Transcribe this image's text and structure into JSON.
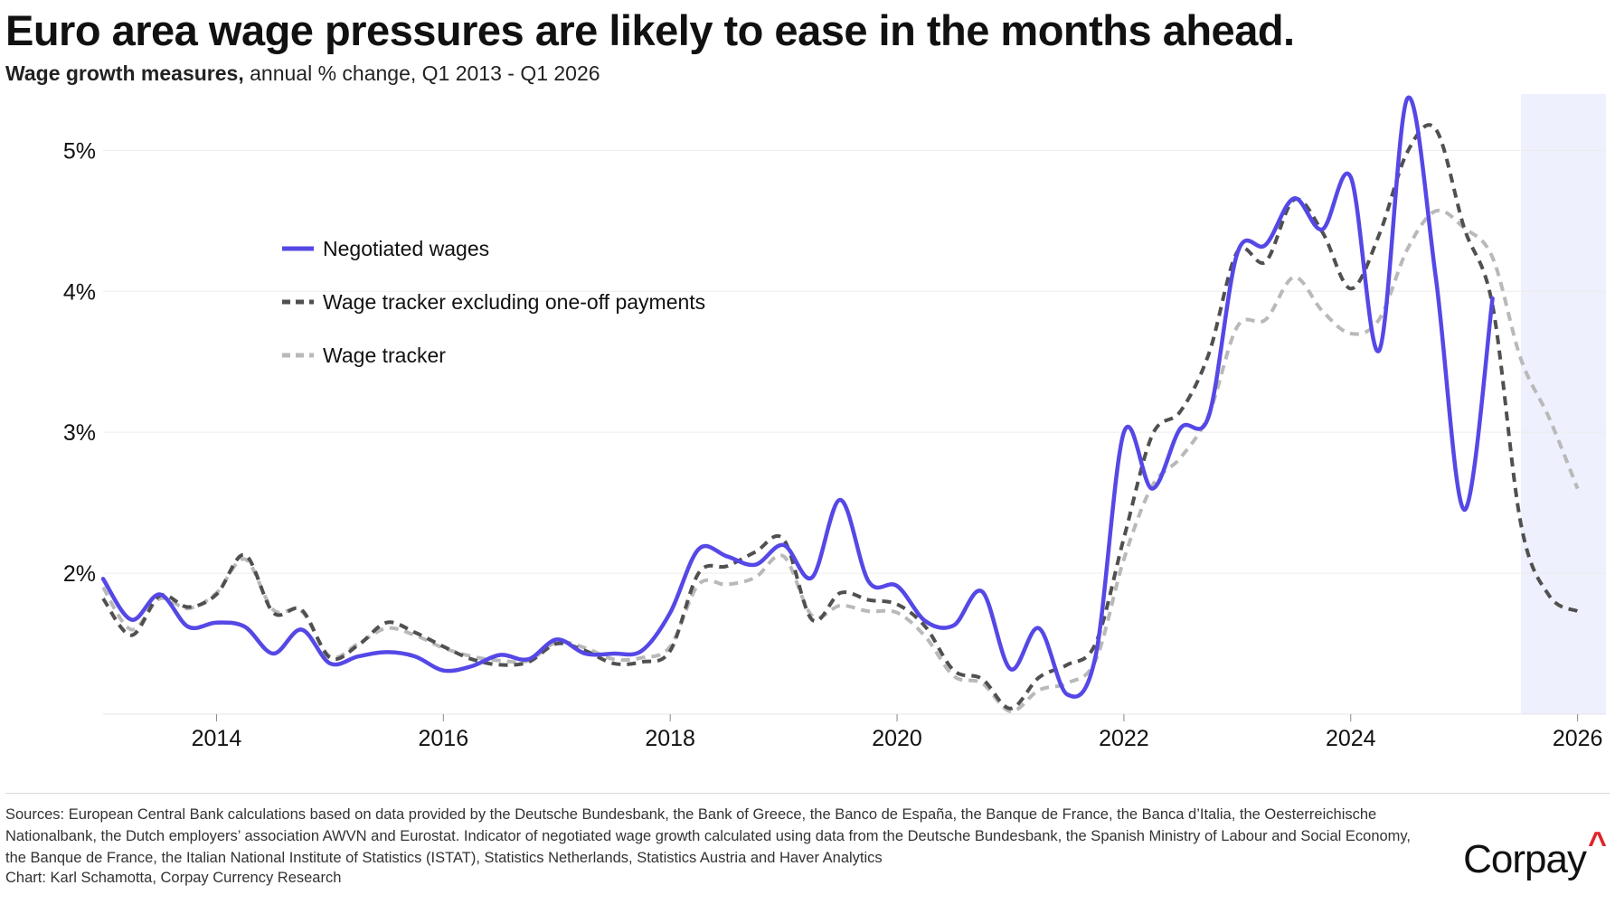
{
  "title": "Euro area wage pressures are likely to ease in the months ahead.",
  "subtitle_bold": "Wage growth measures,",
  "subtitle_rest": " annual % change, Q1 2013 - Q1 2026",
  "footer": {
    "sources": "Sources: European Central Bank calculations based on data provided by the Deutsche Bundesbank, the Bank of Greece, the Banco de España, the Banque de France, the Banca d’Italia, the Oesterreichische Nationalbank, the Dutch employers’ association AWVN and Eurostat. Indicator of negotiated wage growth calculated using data from the Deutsche Bundesbank, the Spanish Ministry of Labour and Social Economy, the Banque de France, the Italian National Institute of Statistics (ISTAT), Statistics Netherlands, Statistics Austria and Haver Analytics",
    "credit": "Chart: Karl Schamotta, Corpay Currency Research",
    "logo_text": "Corpay",
    "logo_mark": "^"
  },
  "colors": {
    "negotiated": "#5548e6",
    "tracker_excl": "#505050",
    "tracker": "#b9b9b9",
    "forecast_band": "#eef0fd",
    "grid": "#ececec",
    "logo_accent": "#e0242a"
  },
  "chart_data": {
    "type": "line",
    "x_unit": "year",
    "xlim": [
      2013.0,
      2026.25
    ],
    "ylim": [
      1.0,
      5.4
    ],
    "x_ticks": [
      2014,
      2016,
      2018,
      2020,
      2022,
      2024,
      2026
    ],
    "x_tick_labels": [
      "2014",
      "2016",
      "2018",
      "2020",
      "2022",
      "2024",
      "2026"
    ],
    "y_ticks": [
      2,
      3,
      4,
      5
    ],
    "y_tick_labels": [
      "2%",
      "3%",
      "4%",
      "5%"
    ],
    "grid": "horizontal",
    "legend_position": "middle-left",
    "shaded_region": [
      2025.5,
      2026.25
    ],
    "series": [
      {
        "name": "Negotiated wages",
        "style": "solid",
        "points": [
          [
            2013.0,
            1.96
          ],
          [
            2013.25,
            1.67
          ],
          [
            2013.5,
            1.85
          ],
          [
            2013.75,
            1.62
          ],
          [
            2014.0,
            1.65
          ],
          [
            2014.25,
            1.62
          ],
          [
            2014.5,
            1.43
          ],
          [
            2014.75,
            1.6
          ],
          [
            2015.0,
            1.36
          ],
          [
            2015.25,
            1.41
          ],
          [
            2015.5,
            1.44
          ],
          [
            2015.75,
            1.41
          ],
          [
            2016.0,
            1.31
          ],
          [
            2016.25,
            1.34
          ],
          [
            2016.5,
            1.42
          ],
          [
            2016.75,
            1.39
          ],
          [
            2017.0,
            1.53
          ],
          [
            2017.25,
            1.43
          ],
          [
            2017.5,
            1.43
          ],
          [
            2017.75,
            1.45
          ],
          [
            2018.0,
            1.72
          ],
          [
            2018.25,
            2.17
          ],
          [
            2018.5,
            2.12
          ],
          [
            2018.75,
            2.06
          ],
          [
            2019.0,
            2.2
          ],
          [
            2019.25,
            1.97
          ],
          [
            2019.5,
            2.52
          ],
          [
            2019.75,
            1.94
          ],
          [
            2020.0,
            1.91
          ],
          [
            2020.25,
            1.66
          ],
          [
            2020.5,
            1.63
          ],
          [
            2020.75,
            1.87
          ],
          [
            2021.0,
            1.32
          ],
          [
            2021.25,
            1.61
          ],
          [
            2021.5,
            1.14
          ],
          [
            2021.75,
            1.41
          ],
          [
            2022.0,
            3.0
          ],
          [
            2022.25,
            2.6
          ],
          [
            2022.5,
            3.03
          ],
          [
            2022.75,
            3.12
          ],
          [
            2023.0,
            4.27
          ],
          [
            2023.25,
            4.33
          ],
          [
            2023.5,
            4.66
          ],
          [
            2023.75,
            4.44
          ],
          [
            2024.0,
            4.81
          ],
          [
            2024.25,
            3.58
          ],
          [
            2024.5,
            5.37
          ],
          [
            2024.75,
            4.1
          ],
          [
            2025.0,
            2.45
          ],
          [
            2025.25,
            3.95
          ]
        ]
      },
      {
        "name": "Wage tracker excluding one-off payments",
        "style": "dashed",
        "points": [
          [
            2013.0,
            1.82
          ],
          [
            2013.25,
            1.56
          ],
          [
            2013.5,
            1.84
          ],
          [
            2013.75,
            1.76
          ],
          [
            2014.0,
            1.85
          ],
          [
            2014.25,
            2.13
          ],
          [
            2014.5,
            1.72
          ],
          [
            2014.75,
            1.74
          ],
          [
            2015.0,
            1.4
          ],
          [
            2015.25,
            1.49
          ],
          [
            2015.5,
            1.65
          ],
          [
            2015.75,
            1.58
          ],
          [
            2016.0,
            1.48
          ],
          [
            2016.25,
            1.39
          ],
          [
            2016.5,
            1.35
          ],
          [
            2016.75,
            1.37
          ],
          [
            2017.0,
            1.5
          ],
          [
            2017.25,
            1.45
          ],
          [
            2017.5,
            1.36
          ],
          [
            2017.75,
            1.37
          ],
          [
            2018.0,
            1.45
          ],
          [
            2018.25,
            2.0
          ],
          [
            2018.5,
            2.05
          ],
          [
            2018.75,
            2.15
          ],
          [
            2019.0,
            2.24
          ],
          [
            2019.25,
            1.67
          ],
          [
            2019.5,
            1.86
          ],
          [
            2019.75,
            1.81
          ],
          [
            2020.0,
            1.78
          ],
          [
            2020.25,
            1.62
          ],
          [
            2020.5,
            1.31
          ],
          [
            2020.75,
            1.25
          ],
          [
            2021.0,
            1.04
          ],
          [
            2021.25,
            1.26
          ],
          [
            2021.5,
            1.35
          ],
          [
            2021.75,
            1.5
          ],
          [
            2022.0,
            2.25
          ],
          [
            2022.25,
            2.98
          ],
          [
            2022.5,
            3.15
          ],
          [
            2022.75,
            3.56
          ],
          [
            2023.0,
            4.28
          ],
          [
            2023.25,
            4.21
          ],
          [
            2023.5,
            4.65
          ],
          [
            2023.75,
            4.42
          ],
          [
            2024.0,
            4.02
          ],
          [
            2024.25,
            4.4
          ],
          [
            2024.5,
            4.99
          ],
          [
            2024.75,
            5.15
          ],
          [
            2025.0,
            4.45
          ],
          [
            2025.25,
            3.9
          ],
          [
            2025.5,
            2.35
          ],
          [
            2025.75,
            1.84
          ],
          [
            2026.0,
            1.73
          ]
        ]
      },
      {
        "name": "Wage tracker",
        "style": "dashed",
        "points": [
          [
            2013.0,
            1.9
          ],
          [
            2013.25,
            1.6
          ],
          [
            2013.5,
            1.82
          ],
          [
            2013.75,
            1.75
          ],
          [
            2014.0,
            1.86
          ],
          [
            2014.25,
            2.1
          ],
          [
            2014.5,
            1.74
          ],
          [
            2014.75,
            1.73
          ],
          [
            2015.0,
            1.41
          ],
          [
            2015.25,
            1.5
          ],
          [
            2015.5,
            1.61
          ],
          [
            2015.75,
            1.56
          ],
          [
            2016.0,
            1.47
          ],
          [
            2016.25,
            1.41
          ],
          [
            2016.5,
            1.38
          ],
          [
            2016.75,
            1.38
          ],
          [
            2017.0,
            1.51
          ],
          [
            2017.25,
            1.47
          ],
          [
            2017.5,
            1.39
          ],
          [
            2017.75,
            1.4
          ],
          [
            2018.0,
            1.48
          ],
          [
            2018.25,
            1.92
          ],
          [
            2018.5,
            1.92
          ],
          [
            2018.75,
            1.97
          ],
          [
            2019.0,
            2.12
          ],
          [
            2019.25,
            1.7
          ],
          [
            2019.5,
            1.77
          ],
          [
            2019.75,
            1.73
          ],
          [
            2020.0,
            1.72
          ],
          [
            2020.25,
            1.55
          ],
          [
            2020.5,
            1.27
          ],
          [
            2020.75,
            1.22
          ],
          [
            2021.0,
            1.02
          ],
          [
            2021.25,
            1.17
          ],
          [
            2021.5,
            1.22
          ],
          [
            2021.75,
            1.38
          ],
          [
            2022.0,
            2.1
          ],
          [
            2022.25,
            2.62
          ],
          [
            2022.5,
            2.82
          ],
          [
            2022.75,
            3.13
          ],
          [
            2023.0,
            3.75
          ],
          [
            2023.25,
            3.8
          ],
          [
            2023.5,
            4.1
          ],
          [
            2023.75,
            3.86
          ],
          [
            2024.0,
            3.7
          ],
          [
            2024.25,
            3.8
          ],
          [
            2024.5,
            4.3
          ],
          [
            2024.75,
            4.57
          ],
          [
            2025.0,
            4.45
          ],
          [
            2025.25,
            4.24
          ],
          [
            2025.5,
            3.52
          ],
          [
            2025.75,
            3.1
          ],
          [
            2026.0,
            2.6
          ]
        ]
      }
    ]
  }
}
